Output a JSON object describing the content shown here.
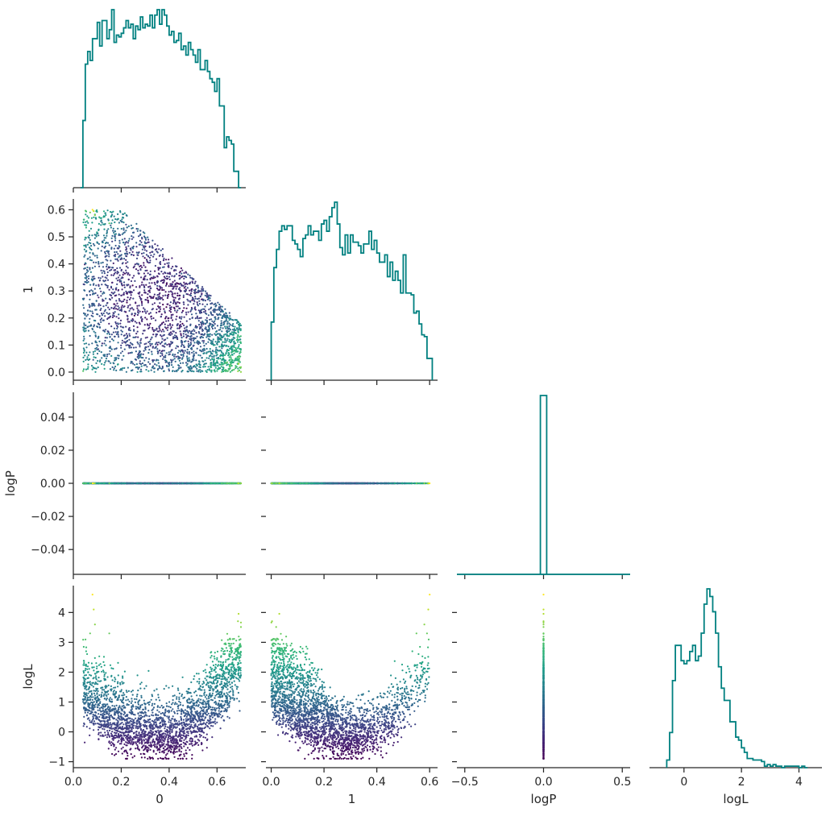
{
  "chart_data": {
    "type": "corner",
    "parameters": [
      "0",
      "1",
      "logP",
      "logL"
    ],
    "colors": {
      "histogram": "#008080",
      "axis": "#262626",
      "scatter_colormap": "viridis",
      "scatter_color_by": "logL"
    },
    "axes": {
      "0": {
        "label": "0",
        "xlim": [
          0.0,
          0.72
        ],
        "xticks": [
          0.0,
          0.2,
          0.4,
          0.6
        ],
        "xtick_labels": [
          "0.0",
          "0.2",
          "0.4",
          "0.6"
        ]
      },
      "1": {
        "label": "1",
        "xlim": [
          -0.02,
          0.63
        ],
        "xticks": [
          0.0,
          0.2,
          0.4,
          0.6
        ],
        "xtick_labels": [
          "0.0",
          "0.2",
          "0.4",
          "0.6"
        ],
        "ylim": [
          -0.03,
          0.64
        ],
        "yticks": [
          0.0,
          0.1,
          0.2,
          0.3,
          0.4,
          0.5,
          0.6
        ],
        "ytick_labels": [
          "0.0",
          "0.1",
          "0.2",
          "0.3",
          "0.4",
          "0.5",
          "0.6"
        ]
      },
      "logP": {
        "label": "logP",
        "xlim": [
          -0.55,
          0.55
        ],
        "xticks": [
          -0.5,
          0.0,
          0.5
        ],
        "xtick_labels": [
          "−0.5",
          "0.0",
          "0.5"
        ],
        "ylim": [
          -0.055,
          0.055
        ],
        "yticks": [
          -0.04,
          -0.02,
          0.0,
          0.02,
          0.04
        ],
        "ytick_labels": [
          "−0.04",
          "−0.02",
          "0.00",
          "0.02",
          "0.04"
        ]
      },
      "logL": {
        "label": "logL",
        "xlim": [
          -1.2,
          4.8
        ],
        "xticks": [
          0,
          2,
          4
        ],
        "xtick_labels": [
          "0",
          "2",
          "4"
        ],
        "ylim": [
          -1.2,
          4.9
        ],
        "yticks": [
          -1,
          0,
          1,
          2,
          3,
          4
        ],
        "ytick_labels": [
          "−1",
          "0",
          "1",
          "2",
          "3",
          "4"
        ]
      }
    },
    "histograms": {
      "0": {
        "bin_edges": [
          0.03,
          0.04,
          0.05,
          0.06,
          0.07,
          0.08,
          0.09,
          0.1,
          0.11,
          0.12,
          0.13,
          0.14,
          0.15,
          0.16,
          0.17,
          0.18,
          0.19,
          0.2,
          0.21,
          0.22,
          0.23,
          0.24,
          0.25,
          0.26,
          0.27,
          0.28,
          0.29,
          0.3,
          0.31,
          0.32,
          0.33,
          0.34,
          0.35,
          0.36,
          0.37,
          0.38,
          0.39,
          0.4,
          0.41,
          0.42,
          0.43,
          0.44,
          0.45,
          0.46,
          0.47,
          0.48,
          0.49,
          0.5,
          0.51,
          0.52,
          0.53,
          0.54,
          0.55,
          0.56,
          0.57,
          0.58,
          0.59,
          0.6,
          0.61,
          0.62,
          0.63,
          0.64,
          0.65,
          0.66,
          0.67,
          0.68,
          0.69,
          0.7
        ],
        "counts": [
          0,
          37,
          68,
          75,
          70,
          82,
          82,
          91,
          78,
          92,
          92,
          82,
          87,
          98,
          80,
          84,
          83,
          85,
          88,
          92,
          88,
          90,
          82,
          89,
          87,
          94,
          88,
          90,
          89,
          95,
          88,
          95,
          98,
          90,
          98,
          95,
          89,
          84,
          86,
          80,
          81,
          85,
          76,
          78,
          73,
          80,
          76,
          73,
          69,
          76,
          65,
          65,
          70,
          64,
          60,
          58,
          53,
          60,
          45,
          45,
          22,
          28,
          26,
          24,
          9,
          9,
          0
        ]
      },
      "1": {
        "bin_edges": [
          0.0,
          0.01,
          0.02,
          0.03,
          0.04,
          0.05,
          0.06,
          0.07,
          0.08,
          0.09,
          0.1,
          0.11,
          0.12,
          0.13,
          0.14,
          0.15,
          0.16,
          0.17,
          0.18,
          0.19,
          0.2,
          0.21,
          0.22,
          0.23,
          0.24,
          0.25,
          0.26,
          0.27,
          0.28,
          0.29,
          0.3,
          0.31,
          0.32,
          0.33,
          0.34,
          0.35,
          0.36,
          0.37,
          0.38,
          0.39,
          0.4,
          0.41,
          0.42,
          0.43,
          0.44,
          0.45,
          0.46,
          0.47,
          0.48,
          0.49,
          0.5,
          0.51,
          0.52,
          0.53,
          0.54,
          0.55,
          0.56,
          0.57,
          0.58,
          0.59,
          0.6,
          0.61
        ],
        "counts": [
          32,
          62,
          72,
          82,
          85,
          83,
          85,
          85,
          77,
          75,
          72,
          68,
          78,
          80,
          85,
          80,
          82,
          82,
          77,
          86,
          88,
          82,
          90,
          95,
          98,
          86,
          73,
          69,
          80,
          70,
          80,
          76,
          76,
          74,
          70,
          75,
          75,
          82,
          72,
          77,
          70,
          65,
          65,
          69,
          57,
          65,
          55,
          60,
          55,
          48,
          69,
          48,
          48,
          47,
          37,
          38,
          31,
          25,
          24,
          12,
          12
        ]
      },
      "logP": {
        "bin_edges": [
          -0.02,
          0.02
        ],
        "counts": [
          1
        ]
      },
      "logL": {
        "bin_edges": [
          -0.6,
          -0.5,
          -0.4,
          -0.3,
          -0.2,
          -0.1,
          0.0,
          0.1,
          0.2,
          0.3,
          0.4,
          0.5,
          0.6,
          0.7,
          0.8,
          0.9,
          1.0,
          1.1,
          1.2,
          1.3,
          1.4,
          1.5,
          1.6,
          1.7,
          1.8,
          1.9,
          2.0,
          2.1,
          2.2,
          2.3,
          2.4,
          2.5,
          2.6,
          2.7,
          2.8,
          2.9,
          3.0,
          3.1,
          3.2,
          3.3,
          3.4,
          3.5,
          4.0,
          4.1,
          4.2,
          4.3
        ],
        "counts": [
          5,
          23,
          57,
          80,
          80,
          70,
          68,
          70,
          76,
          80,
          70,
          73,
          88,
          107,
          117,
          112,
          102,
          88,
          66,
          52,
          44,
          44,
          30,
          30,
          20,
          18,
          13,
          10,
          6,
          6,
          5,
          5,
          5,
          4,
          1,
          2,
          1,
          2,
          1,
          1,
          0,
          1,
          0,
          1,
          0
        ]
      }
    },
    "scatter_summary": {
      "points": 5000,
      "0_vs_1": "points fill a region bounded roughly by 1 ≤ 0.6 − 0.85·max(0, 0 − 0.1); purple near the center, teal/yellow near the edges",
      "0_vs_logP": "all points lie on logP = 0",
      "1_vs_logP": "all points lie on logP = 0",
      "0_vs_logL": "logL between −0.9 and 4.6; high values near 0 ≈ 0.08 and 0 ≈ 0.65",
      "1_vs_logL": "U-shaped band, logL rising steeply near 1 ≈ 0.0 and 1 ≈ 0.6",
      "logP_vs_logL": "vertical line at logP = 0 spanning logL −0.9 to 4.6"
    }
  }
}
